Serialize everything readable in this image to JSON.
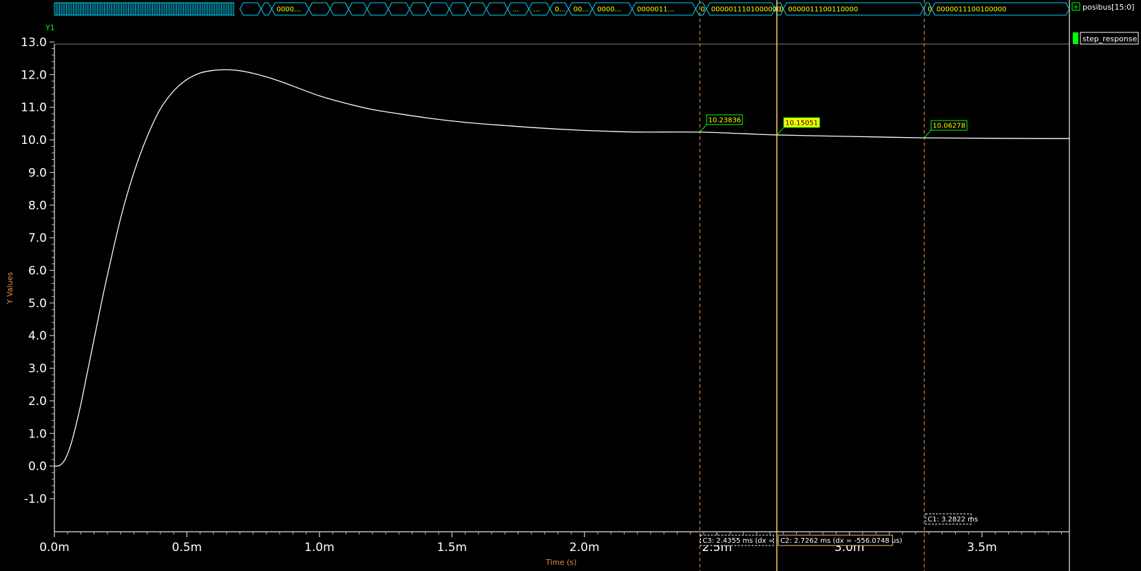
{
  "bus": {
    "name": "posibus[15:0]",
    "segments": [
      {
        "t0": 0.7,
        "t1": 0.78,
        "label": ""
      },
      {
        "t0": 0.78,
        "t1": 0.82,
        "label": ""
      },
      {
        "t0": 0.82,
        "t1": 0.96,
        "label": "0000..."
      },
      {
        "t0": 0.96,
        "t1": 1.04,
        "label": ""
      },
      {
        "t0": 1.04,
        "t1": 1.11,
        "label": ""
      },
      {
        "t0": 1.11,
        "t1": 1.18,
        "label": ""
      },
      {
        "t0": 1.18,
        "t1": 1.26,
        "label": ""
      },
      {
        "t0": 1.26,
        "t1": 1.34,
        "label": ""
      },
      {
        "t0": 1.34,
        "t1": 1.41,
        "label": ""
      },
      {
        "t0": 1.41,
        "t1": 1.49,
        "label": ""
      },
      {
        "t0": 1.49,
        "t1": 1.56,
        "label": ""
      },
      {
        "t0": 1.56,
        "t1": 1.63,
        "label": ""
      },
      {
        "t0": 1.63,
        "t1": 1.71,
        "label": ""
      },
      {
        "t0": 1.71,
        "t1": 1.79,
        "label": "..."
      },
      {
        "t0": 1.79,
        "t1": 1.87,
        "label": "..."
      },
      {
        "t0": 1.87,
        "t1": 1.94,
        "label": "0..."
      },
      {
        "t0": 1.94,
        "t1": 2.03,
        "label": "00..."
      },
      {
        "t0": 2.03,
        "t1": 2.18,
        "label": "0000..."
      },
      {
        "t0": 2.18,
        "t1": 2.42,
        "label": "0000011..."
      },
      {
        "t0": 2.42,
        "t1": 2.46,
        "label": "0"
      },
      {
        "t0": 2.46,
        "t1": 2.72,
        "label": "0000011101000000"
      },
      {
        "t0": 2.72,
        "t1": 2.75,
        "label": "0"
      },
      {
        "t0": 2.75,
        "t1": 3.28,
        "label": "0000011100110000"
      },
      {
        "t0": 3.28,
        "t1": 3.31,
        "label": "0"
      },
      {
        "t0": 3.31,
        "t1": 3.83,
        "label": "0000011100100000"
      }
    ],
    "dense_until": 0.68,
    "bus_label": "Y1"
  },
  "legend": {
    "group": "posibus[15:0]",
    "signal": "step_response",
    "expand_glyph": "+"
  },
  "chart_data": {
    "type": "line",
    "series": [
      {
        "name": "step_response",
        "x": [
          0.0,
          0.02,
          0.04,
          0.06,
          0.08,
          0.1,
          0.12,
          0.14,
          0.16,
          0.18,
          0.2,
          0.25,
          0.3,
          0.35,
          0.4,
          0.45,
          0.5,
          0.55,
          0.6,
          0.65,
          0.7,
          0.75,
          0.8,
          0.85,
          0.9,
          1.0,
          1.1,
          1.2,
          1.3,
          1.4,
          1.5,
          1.6,
          1.7,
          1.8,
          1.9,
          2.0,
          2.1,
          2.2,
          2.3,
          2.4355,
          2.6,
          2.7262,
          2.9,
          3.1,
          3.2822,
          3.5,
          3.75,
          3.83
        ],
        "y": [
          0.0,
          0.02,
          0.2,
          0.6,
          1.2,
          1.9,
          2.7,
          3.5,
          4.3,
          5.1,
          5.85,
          7.6,
          9.0,
          10.1,
          10.95,
          11.5,
          11.85,
          12.05,
          12.13,
          12.15,
          12.12,
          12.04,
          11.93,
          11.8,
          11.65,
          11.35,
          11.12,
          10.93,
          10.8,
          10.68,
          10.58,
          10.5,
          10.44,
          10.38,
          10.33,
          10.29,
          10.26,
          10.24,
          10.24,
          10.23836,
          10.19,
          10.15051,
          10.12,
          10.09,
          10.06278,
          10.05,
          10.04,
          10.04
        ]
      }
    ],
    "xlabel": "Time (s)",
    "ylabel": "Y Values",
    "xlim": [
      0.0,
      3.83
    ],
    "ylim": [
      -1.0,
      13.0
    ],
    "x_ticks": [
      {
        "v": 0.0,
        "label": "0.0m"
      },
      {
        "v": 0.5,
        "label": "0.5m"
      },
      {
        "v": 1.0,
        "label": "1.0m"
      },
      {
        "v": 1.5,
        "label": "1.5m"
      },
      {
        "v": 2.0,
        "label": "2.0m"
      },
      {
        "v": 2.5,
        "label": "2.5m"
      },
      {
        "v": 3.0,
        "label": "3.0m"
      },
      {
        "v": 3.5,
        "label": "3.5m"
      }
    ],
    "y_ticks": [
      {
        "v": 13.0,
        "label": "13.0"
      },
      {
        "v": 12.0,
        "label": "12.0"
      },
      {
        "v": 11.0,
        "label": "11.0"
      },
      {
        "v": 10.0,
        "label": "10.0"
      },
      {
        "v": 9.0,
        "label": "9.0"
      },
      {
        "v": 8.0,
        "label": "8.0"
      },
      {
        "v": 7.0,
        "label": "7.0"
      },
      {
        "v": 6.0,
        "label": "6.0"
      },
      {
        "v": 5.0,
        "label": "5.0"
      },
      {
        "v": 4.0,
        "label": "4.0"
      },
      {
        "v": 3.0,
        "label": "3.0"
      },
      {
        "v": 2.0,
        "label": "2.0"
      },
      {
        "v": 1.0,
        "label": "1.0"
      },
      {
        "v": 0.0,
        "label": "0.0"
      },
      {
        "v": -1.0,
        "label": "-1.0"
      }
    ],
    "grid": false,
    "cursors": [
      {
        "id": "C3",
        "x": 2.4355,
        "y": 10.23836,
        "value_label": "10.23836",
        "readout": "C3: 2.4355 ms (dx = -",
        "style": "dashed",
        "color": "#f0a060",
        "active": false
      },
      {
        "id": "C2",
        "x": 2.7262,
        "y": 10.15051,
        "value_label": "10.15051",
        "readout": "C2: 2.7262 ms (dx = -556.0748 us)",
        "style": "solid",
        "color": "#f0c060",
        "active": true
      },
      {
        "id": "C1",
        "x": 3.2822,
        "y": 10.06278,
        "value_label": "10.06278",
        "readout": "C1: 3.2822 ms",
        "style": "dashed",
        "color": "#f0a060",
        "active": false
      }
    ]
  },
  "colors": {
    "background": "#000000",
    "bus": "#00d8ff",
    "bus_text": "#ffff00",
    "trace": "#ffffff",
    "axis_title": "#f08c3c",
    "marker_box": "#ffff00",
    "legend_swatch": "#00ff00",
    "bus_label": "#00ff00"
  }
}
